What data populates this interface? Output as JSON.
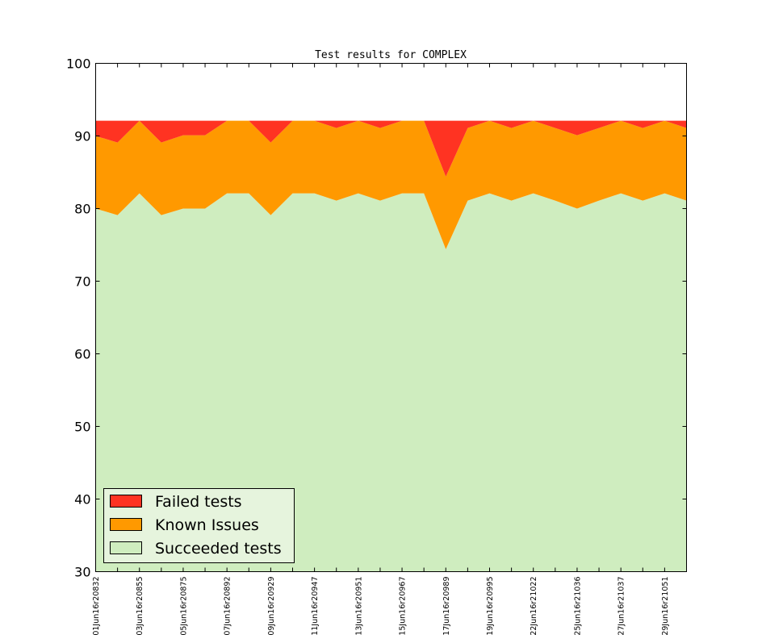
{
  "chart_data": {
    "type": "area",
    "title": "Test results for COMPLEX",
    "xlabel": "",
    "ylabel": "",
    "ylim": [
      30,
      100
    ],
    "yticks": [
      30,
      40,
      50,
      60,
      70,
      80,
      90,
      100
    ],
    "grid": false,
    "legend_position": "lower-left",
    "categories": [
      "01Jun16r20832",
      "",
      "03Jun16r20855",
      "",
      "05Jun16r20875",
      "",
      "07Jun16r20892",
      "",
      "09Jun16r20929",
      "",
      "11Jun16r20947",
      "",
      "13Jun16r20951",
      "",
      "15Jun16r20967",
      "",
      "17Jun16r20989",
      "",
      "19Jun16r20995",
      "",
      "22Jun16r21022",
      "",
      "25Jun16r21036",
      "",
      "27Jun16r21037",
      "",
      "29Jun16r21051",
      ""
    ],
    "tick_labels": [
      "01Jun16r20832",
      "03Jun16r20855",
      "05Jun16r20875",
      "07Jun16r20892",
      "09Jun16r20929",
      "11Jun16r20947",
      "13Jun16r20951",
      "15Jun16r20967",
      "17Jun16r20989",
      "19Jun16r20995",
      "22Jun16r21022",
      "25Jun16r21036",
      "27Jun16r21037",
      "29Jun16r21051"
    ],
    "series": [
      {
        "name": "Succeeded tests",
        "color": "#cfedbf",
        "values": [
          80,
          79.1,
          82.1,
          79.1,
          80,
          80,
          82.1,
          82.1,
          79.1,
          82.1,
          82.1,
          81.1,
          82.1,
          81.1,
          82.1,
          82.1,
          74.4,
          81.1,
          82.1,
          81.1,
          82.1,
          81.1,
          80,
          81.1,
          82.1,
          81.1,
          82.1,
          81.1
        ]
      },
      {
        "name": "Known Issues",
        "color": "#ff9900",
        "values": [
          90,
          89.1,
          92.1,
          89.1,
          90.1,
          90.1,
          92.1,
          92.1,
          89.1,
          92.1,
          92.1,
          91.1,
          92.1,
          91.1,
          92.1,
          92.1,
          84.4,
          91.1,
          92.1,
          91.1,
          92.1,
          91.1,
          90.1,
          91.1,
          92.1,
          91.1,
          92.1,
          91.1
        ]
      },
      {
        "name": "Failed tests",
        "color": "#ff3322",
        "values": [
          92.1,
          92.1,
          92.1,
          92.1,
          92.1,
          92.1,
          92.1,
          92.1,
          92.1,
          92.1,
          92.1,
          92.1,
          92.1,
          92.1,
          92.1,
          92.1,
          92.1,
          92.1,
          92.1,
          92.1,
          92.1,
          92.1,
          92.1,
          92.1,
          92.1,
          92.1,
          92.1,
          92.1
        ]
      }
    ],
    "legend": [
      {
        "label": "Failed tests",
        "color": "#ff3322"
      },
      {
        "label": "Known Issues",
        "color": "#ff9900"
      },
      {
        "label": "Succeeded tests",
        "color": "#cfedbf"
      }
    ]
  }
}
